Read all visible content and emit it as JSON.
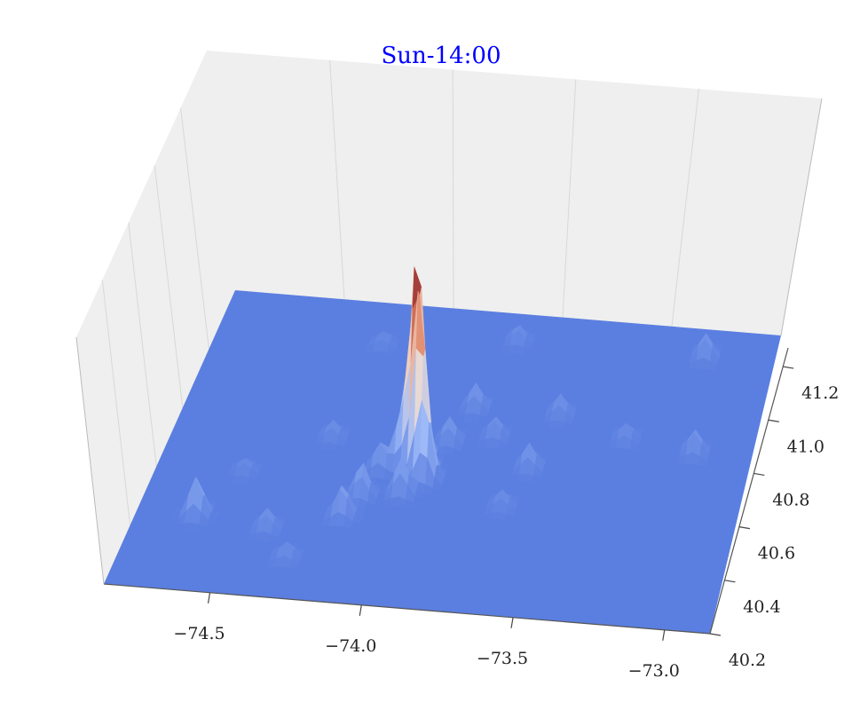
{
  "chart_data": {
    "type": "surface3d",
    "title": "Sun-14:00",
    "title_color": "#0000ff",
    "xlabel": "",
    "ylabel": "",
    "zlabel": "",
    "x_ticks": [
      "−74.5",
      "−74.0",
      "−73.5",
      "−73.0"
    ],
    "y_ticks": [
      "40.2",
      "40.4",
      "40.6",
      "40.8",
      "41.0",
      "41.2"
    ],
    "xlim": [
      -74.85,
      -72.85
    ],
    "ylim": [
      40.2,
      41.3
    ],
    "grid": true,
    "colormap": "coolwarm",
    "colormap_stops": [
      "#5b7fe0",
      "#9db9f7",
      "#f0dcd0",
      "#e08060",
      "#7a1020"
    ],
    "pane_color": "#efefef",
    "peaks": [
      {
        "x": -73.99,
        "y": 40.75,
        "height": 1.0
      },
      {
        "x": -73.97,
        "y": 40.71,
        "height": 0.8
      },
      {
        "x": -73.94,
        "y": 40.68,
        "height": 0.34
      },
      {
        "x": -74.03,
        "y": 40.72,
        "height": 0.3
      },
      {
        "x": -74.0,
        "y": 40.62,
        "height": 0.18
      },
      {
        "x": -74.13,
        "y": 40.6,
        "height": 0.16
      },
      {
        "x": -74.1,
        "y": 40.7,
        "height": 0.14
      },
      {
        "x": -74.17,
        "y": 40.52,
        "height": 0.16
      },
      {
        "x": -73.9,
        "y": 40.82,
        "height": 0.12
      },
      {
        "x": -73.85,
        "y": 40.95,
        "height": 0.12
      },
      {
        "x": -73.75,
        "y": 40.85,
        "height": 0.1
      },
      {
        "x": -73.6,
        "y": 40.75,
        "height": 0.12
      },
      {
        "x": -73.55,
        "y": 40.95,
        "height": 0.1
      },
      {
        "x": -73.3,
        "y": 40.88,
        "height": 0.08
      },
      {
        "x": -73.05,
        "y": 40.85,
        "height": 0.12
      },
      {
        "x": -73.1,
        "y": 41.2,
        "height": 0.12
      },
      {
        "x": -73.78,
        "y": 41.2,
        "height": 0.08
      },
      {
        "x": -74.25,
        "y": 41.15,
        "height": 0.06
      },
      {
        "x": -74.65,
        "y": 40.48,
        "height": 0.2
      },
      {
        "x": -74.4,
        "y": 40.45,
        "height": 0.1
      },
      {
        "x": -74.3,
        "y": 40.35,
        "height": 0.08
      },
      {
        "x": -74.55,
        "y": 40.65,
        "height": 0.06
      },
      {
        "x": -74.3,
        "y": 40.8,
        "height": 0.08
      },
      {
        "x": -73.65,
        "y": 40.6,
        "height": 0.08
      }
    ]
  }
}
